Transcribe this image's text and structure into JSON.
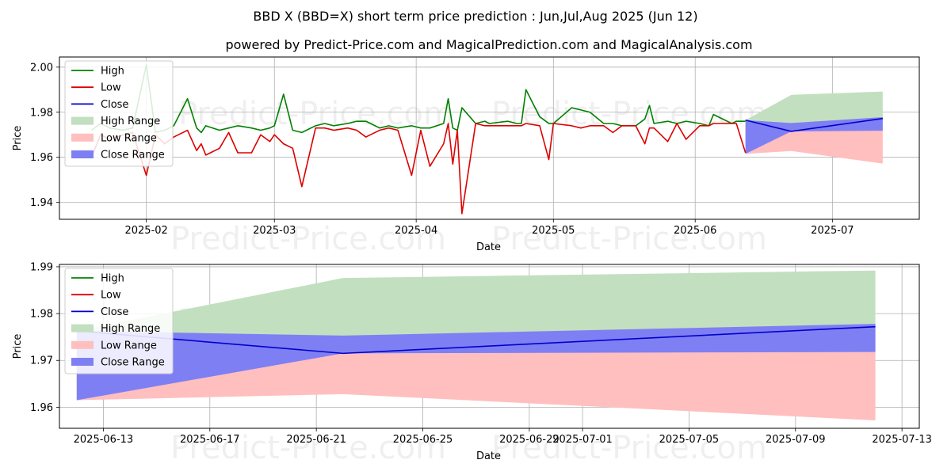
{
  "title": "BBD X (BBD=X) short term price prediction : Jun,Jul,Aug 2025 (Jun 12)",
  "subtitle": "powered by Predict-Price.com and MagicalPrediction.com and MagicalAnalysis.com",
  "watermark": "Predict-Price.com",
  "colors": {
    "high": "#008000",
    "low": "#dd0000",
    "close": "#0000cc",
    "high_range": "#c2e0c0",
    "low_range": "#ffbfbf",
    "close_range": "#7f7ff4"
  },
  "chart_data": [
    {
      "type": "line",
      "panel": "top",
      "xlabel": "Date",
      "ylabel": "Price",
      "xlim": [
        "2025-01-13",
        "2025-07-20"
      ],
      "ylim": [
        1.9325,
        2.0045
      ],
      "yticks": [
        1.94,
        1.96,
        1.98,
        2.0
      ],
      "ytick_labels": [
        "1.94",
        "1.96",
        "1.98",
        "2.00"
      ],
      "xticks": [
        "2025-02-01",
        "2025-03-01",
        "2025-04-01",
        "2025-05-01",
        "2025-06-01",
        "2025-07-01"
      ],
      "xtick_labels": [
        "2025-02",
        "2025-03",
        "2025-04",
        "2025-05",
        "2025-06",
        "2025-07"
      ],
      "grid": true,
      "legend": [
        "High",
        "Low",
        "Close",
        "High Range",
        "Low Range",
        "Close Range"
      ],
      "legend_position": "top-left",
      "series": [
        {
          "name": "High",
          "x": [
            "2025-01-20",
            "2025-01-22",
            "2025-01-24",
            "2025-01-27",
            "2025-01-29",
            "2025-02-01",
            "2025-02-03",
            "2025-02-05",
            "2025-02-07",
            "2025-02-10",
            "2025-02-12",
            "2025-02-13",
            "2025-02-14",
            "2025-02-17",
            "2025-02-19",
            "2025-02-21",
            "2025-02-24",
            "2025-02-26",
            "2025-02-28",
            "2025-03-01",
            "2025-03-03",
            "2025-03-05",
            "2025-03-07",
            "2025-03-10",
            "2025-03-12",
            "2025-03-14",
            "2025-03-17",
            "2025-03-19",
            "2025-03-21",
            "2025-03-24",
            "2025-03-26",
            "2025-03-28",
            "2025-03-31",
            "2025-04-02",
            "2025-04-04",
            "2025-04-07",
            "2025-04-08",
            "2025-04-09",
            "2025-04-10",
            "2025-04-11",
            "2025-04-14",
            "2025-04-16",
            "2025-04-17",
            "2025-04-21",
            "2025-04-23",
            "2025-04-24",
            "2025-04-25",
            "2025-04-28",
            "2025-04-30",
            "2025-05-01",
            "2025-05-05",
            "2025-05-07",
            "2025-05-09",
            "2025-05-12",
            "2025-05-14",
            "2025-05-16",
            "2025-05-19",
            "2025-05-21",
            "2025-05-22",
            "2025-05-23",
            "2025-05-26",
            "2025-05-28",
            "2025-05-30",
            "2025-06-02",
            "2025-06-04",
            "2025-06-05",
            "2025-06-09",
            "2025-06-10",
            "2025-06-12"
          ],
          "values": [
            1.972,
            1.975,
            1.973,
            1.972,
            1.973,
            2.001,
            1.971,
            1.972,
            1.974,
            1.986,
            1.973,
            1.971,
            1.974,
            1.972,
            1.973,
            1.974,
            1.973,
            1.972,
            1.973,
            1.974,
            1.988,
            1.972,
            1.971,
            1.974,
            1.975,
            1.974,
            1.975,
            1.976,
            1.976,
            1.973,
            1.974,
            1.973,
            1.974,
            1.973,
            1.973,
            1.975,
            1.986,
            1.973,
            1.972,
            1.982,
            1.975,
            1.976,
            1.975,
            1.976,
            1.975,
            1.975,
            1.99,
            1.978,
            1.975,
            1.975,
            1.982,
            1.981,
            1.98,
            1.975,
            1.975,
            1.974,
            1.974,
            1.977,
            1.983,
            1.975,
            1.976,
            1.975,
            1.976,
            1.975,
            1.974,
            1.979,
            1.975,
            1.976,
            1.976
          ]
        },
        {
          "name": "Low",
          "x": [
            "2025-01-20",
            "2025-01-22",
            "2025-01-24",
            "2025-01-27",
            "2025-01-29",
            "2025-02-01",
            "2025-02-03",
            "2025-02-05",
            "2025-02-07",
            "2025-02-10",
            "2025-02-12",
            "2025-02-13",
            "2025-02-14",
            "2025-02-17",
            "2025-02-19",
            "2025-02-21",
            "2025-02-24",
            "2025-02-26",
            "2025-02-28",
            "2025-03-01",
            "2025-03-03",
            "2025-03-05",
            "2025-03-07",
            "2025-03-10",
            "2025-03-12",
            "2025-03-14",
            "2025-03-17",
            "2025-03-19",
            "2025-03-21",
            "2025-03-24",
            "2025-03-26",
            "2025-03-28",
            "2025-03-31",
            "2025-04-02",
            "2025-04-04",
            "2025-04-07",
            "2025-04-08",
            "2025-04-09",
            "2025-04-10",
            "2025-04-11",
            "2025-04-14",
            "2025-04-16",
            "2025-04-17",
            "2025-04-21",
            "2025-04-23",
            "2025-04-24",
            "2025-04-25",
            "2025-04-28",
            "2025-04-30",
            "2025-05-01",
            "2025-05-05",
            "2025-05-07",
            "2025-05-09",
            "2025-05-12",
            "2025-05-14",
            "2025-05-16",
            "2025-05-19",
            "2025-05-21",
            "2025-05-22",
            "2025-05-23",
            "2025-05-26",
            "2025-05-28",
            "2025-05-30",
            "2025-06-02",
            "2025-06-04",
            "2025-06-05",
            "2025-06-09",
            "2025-06-10",
            "2025-06-12"
          ],
          "values": [
            1.96,
            1.97,
            1.968,
            1.97,
            1.971,
            1.952,
            1.97,
            1.966,
            1.969,
            1.972,
            1.963,
            1.966,
            1.961,
            1.964,
            1.971,
            1.962,
            1.962,
            1.97,
            1.967,
            1.97,
            1.966,
            1.964,
            1.947,
            1.973,
            1.973,
            1.972,
            1.973,
            1.972,
            1.969,
            1.972,
            1.973,
            1.972,
            1.952,
            1.972,
            1.956,
            1.966,
            1.975,
            1.957,
            1.972,
            1.935,
            1.975,
            1.974,
            1.974,
            1.974,
            1.974,
            1.974,
            1.975,
            1.974,
            1.959,
            1.975,
            1.974,
            1.973,
            1.974,
            1.974,
            1.971,
            1.974,
            1.974,
            1.966,
            1.973,
            1.973,
            1.967,
            1.975,
            1.968,
            1.974,
            1.974,
            1.975,
            1.975,
            1.975,
            1.962
          ]
        },
        {
          "name": "Close",
          "x": [
            "2025-06-12",
            "2025-06-22",
            "2025-07-12"
          ],
          "values": [
            1.9765,
            1.9715,
            1.9772
          ]
        }
      ],
      "ranges": [
        {
          "name": "High Range",
          "x": [
            "2025-06-12",
            "2025-06-22",
            "2025-07-12"
          ],
          "upper": [
            1.9765,
            1.9877,
            1.9892
          ],
          "lower": [
            1.9615,
            1.9718,
            1.9718
          ]
        },
        {
          "name": "Low Range",
          "x": [
            "2025-06-12",
            "2025-06-22",
            "2025-07-12"
          ],
          "upper": [
            1.9765,
            1.9718,
            1.9718
          ],
          "lower": [
            1.9615,
            1.9628,
            1.9572
          ]
        },
        {
          "name": "Close Range",
          "x": [
            "2025-06-12",
            "2025-06-22",
            "2025-07-12"
          ],
          "upper": [
            1.9765,
            1.9752,
            1.9778
          ],
          "lower": [
            1.9615,
            1.9715,
            1.9718
          ]
        }
      ]
    },
    {
      "type": "line",
      "panel": "bottom",
      "xlabel": "Date",
      "ylabel": "Price",
      "xlim": [
        "2025-06-11.35",
        "2025-07-13.65"
      ],
      "ylim": [
        1.9555,
        1.9905
      ],
      "yticks": [
        1.96,
        1.97,
        1.98,
        1.99
      ],
      "ytick_labels": [
        "1.96",
        "1.97",
        "1.98",
        "1.99"
      ],
      "xticks": [
        "2025-06-13",
        "2025-06-17",
        "2025-06-21",
        "2025-06-25",
        "2025-06-29",
        "2025-07-01",
        "2025-07-05",
        "2025-07-09",
        "2025-07-13"
      ],
      "xtick_labels": [
        "2025-06-13",
        "2025-06-17",
        "2025-06-21",
        "2025-06-25",
        "2025-06-29",
        "2025-07-01",
        "2025-07-05",
        "2025-07-09",
        "2025-07-13"
      ],
      "grid": true,
      "legend": [
        "High",
        "Low",
        "Close",
        "High Range",
        "Low Range",
        "Close Range"
      ],
      "legend_position": "top-left",
      "series": [
        {
          "name": "Close",
          "x": [
            "2025-06-12",
            "2025-06-22",
            "2025-07-12"
          ],
          "values": [
            1.9763,
            1.9715,
            1.9772
          ]
        }
      ],
      "ranges": [
        {
          "name": "High Range",
          "x": [
            "2025-06-12",
            "2025-06-22",
            "2025-07-12"
          ],
          "upper": [
            1.9763,
            1.9876,
            1.9892
          ],
          "lower": [
            1.9615,
            1.9718,
            1.9718
          ]
        },
        {
          "name": "Low Range",
          "x": [
            "2025-06-12",
            "2025-06-22",
            "2025-07-12"
          ],
          "upper": [
            1.9763,
            1.9718,
            1.9718
          ],
          "lower": [
            1.9615,
            1.9628,
            1.9572
          ]
        },
        {
          "name": "Close Range",
          "x": [
            "2025-06-12",
            "2025-06-22",
            "2025-07-12"
          ],
          "upper": [
            1.9763,
            1.9753,
            1.9778
          ],
          "lower": [
            1.9615,
            1.9715,
            1.9718
          ]
        }
      ]
    }
  ]
}
